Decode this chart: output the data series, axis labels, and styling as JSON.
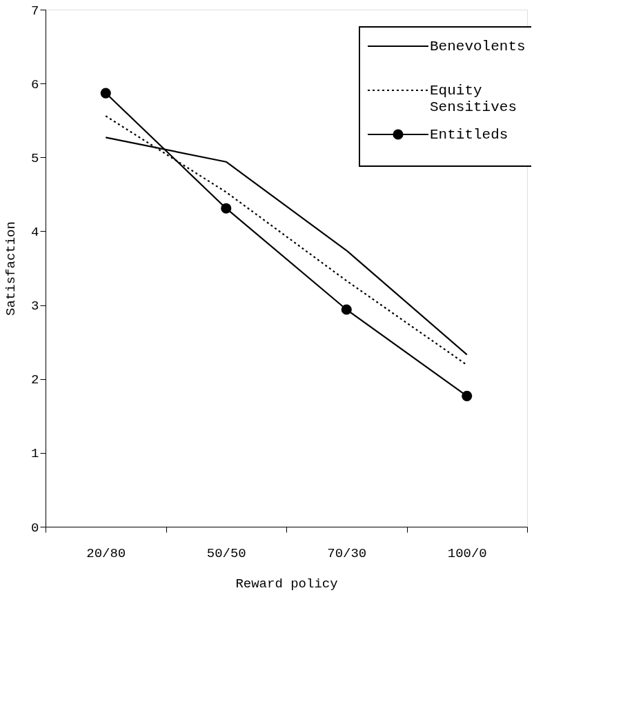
{
  "chart_data": {
    "type": "line",
    "xlabel": "Reward policy",
    "ylabel": "Satisfaction",
    "categories": [
      "20/80",
      "50/50",
      "70/30",
      "100/0"
    ],
    "ylim": [
      0,
      7
    ],
    "yticks": [
      0,
      1,
      2,
      3,
      4,
      5,
      6,
      7
    ],
    "grid": false,
    "legend": "top right",
    "series": [
      {
        "name": "Benevolents",
        "color": "#000000",
        "line_style": "solid",
        "marker": "none",
        "values": [
          5.27,
          4.94,
          3.74,
          2.33
        ]
      },
      {
        "name": "Equity Sensitives",
        "color": "#000000",
        "line_style": "dotted",
        "marker": "none",
        "values": [
          5.56,
          4.53,
          3.33,
          2.19
        ]
      },
      {
        "name": "Entitleds",
        "color": "#000000",
        "line_style": "solid",
        "marker": "circle",
        "values": [
          5.87,
          4.31,
          2.94,
          1.77
        ]
      }
    ]
  }
}
